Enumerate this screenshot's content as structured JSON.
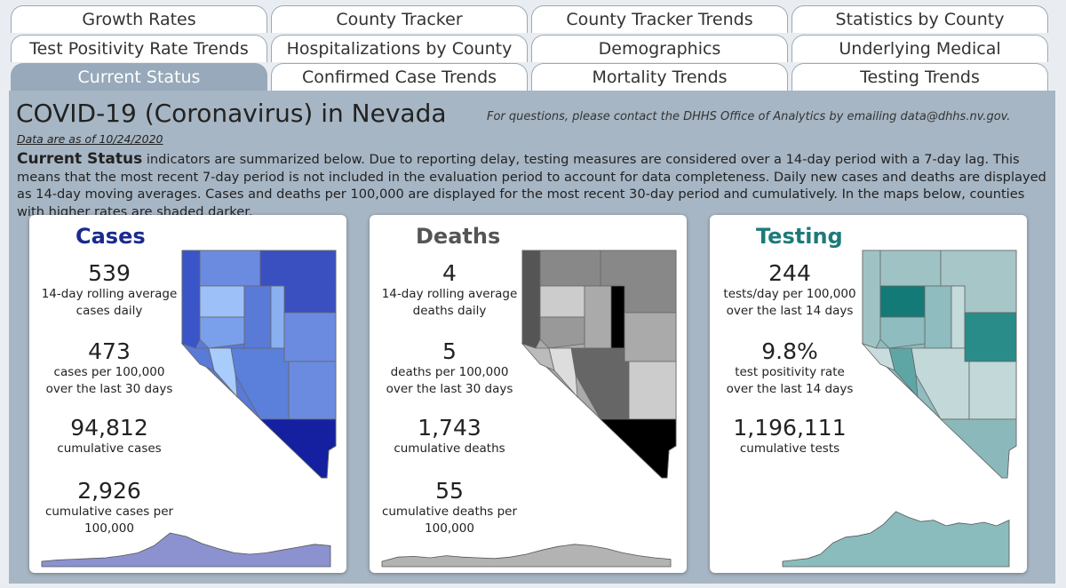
{
  "tabs": {
    "rows": [
      [
        "Growth Rates",
        "County Tracker",
        "County Tracker Trends",
        "Statistics by County"
      ],
      [
        "Test Positivity Rate Trends",
        "Hospitalizations by County",
        "Demographics",
        "Underlying Medical Conditions"
      ],
      [
        "Current Status",
        "Confirmed Case Trends",
        "Mortality Trends",
        "Testing Trends"
      ]
    ]
  },
  "header": {
    "title": "COVID-19 (Coronavirus) in Nevada",
    "contact": "For questions, please contact the DHHS Office of Analytics by emailing data@dhhs.nv.gov.",
    "date": "Data are as of 10/24/2020"
  },
  "intro": {
    "lead": "Current Status",
    "text": "indicators are summarized below.  Due to reporting delay, testing measures are considered over a 14-day period with a 7-day lag.  This means that the most recent 7-day period is not included in the evaluation period to account for data completeness.  Daily new cases and deaths are displayed as 14-day moving averages.  Cases and deaths per 100,000 are displayed for the most recent 30-day period and cumulatively.  In the maps below, counties with higher rates are shaded darker."
  },
  "cards": [
    {
      "title": "Cases",
      "metrics": [
        {
          "value": "539",
          "label": [
            "14-day rolling average",
            "cases daily"
          ]
        },
        {
          "value": "473",
          "label": [
            "cases per 100,000",
            "over the last 30 days"
          ]
        },
        {
          "value": "94,812",
          "label": [
            "cumulative cases"
          ]
        },
        {
          "value": "2,926",
          "label": [
            "cumulative cases per",
            "100,000"
          ]
        }
      ]
    },
    {
      "title": "Deaths",
      "metrics": [
        {
          "value": "4",
          "label": [
            "14-day rolling average",
            "deaths daily"
          ]
        },
        {
          "value": "5",
          "label": [
            "deaths per 100,000",
            "over the last 30 days"
          ]
        },
        {
          "value": "1,743",
          "label": [
            "cumulative deaths"
          ]
        },
        {
          "value": "55",
          "label": [
            "cumulative deaths per",
            "100,000"
          ]
        }
      ]
    },
    {
      "title": "Testing",
      "metrics": [
        {
          "value": "244",
          "label": [
            "tests/day per 100,000",
            "over the last 14 days"
          ]
        },
        {
          "value": "9.8%",
          "label": [
            "test positivity rate",
            "over the last 14 days"
          ]
        },
        {
          "value": "1,196,111",
          "label": [
            "cumulative tests"
          ]
        }
      ]
    }
  ]
}
